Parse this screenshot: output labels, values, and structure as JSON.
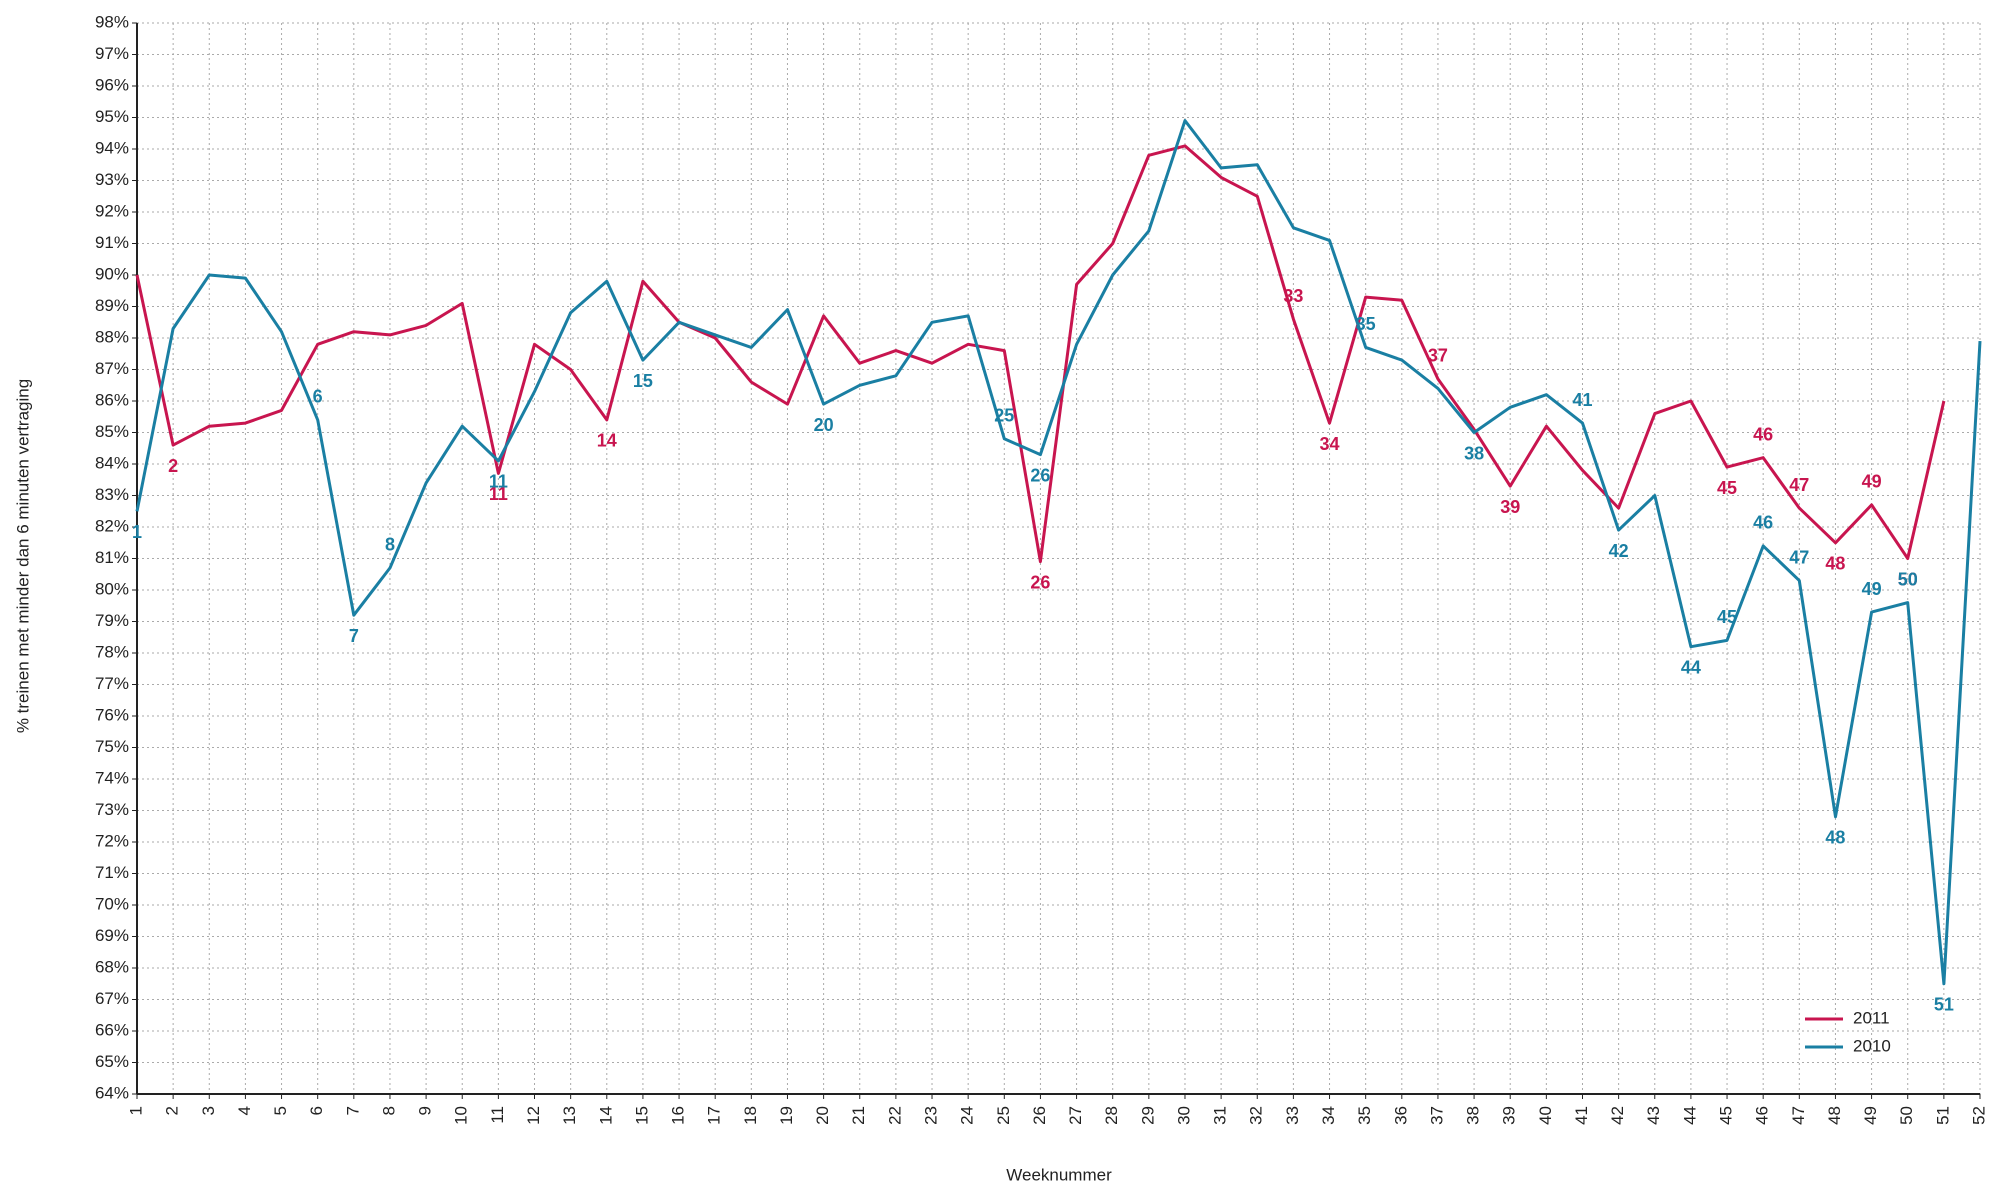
{
  "chart_data": {
    "type": "line",
    "y_label": "% treinen met minder dan 6 minuten vertraging",
    "x_label": "Weeknummer",
    "x": [
      1,
      2,
      3,
      4,
      5,
      6,
      7,
      8,
      9,
      10,
      11,
      12,
      13,
      14,
      15,
      16,
      17,
      18,
      19,
      20,
      21,
      22,
      23,
      24,
      25,
      26,
      27,
      28,
      29,
      30,
      31,
      32,
      33,
      34,
      35,
      36,
      37,
      38,
      39,
      40,
      41,
      42,
      43,
      44,
      45,
      46,
      47,
      48,
      49,
      50,
      51,
      52
    ],
    "xlim": [
      1,
      52
    ],
    "xticks": [
      1,
      2,
      3,
      4,
      5,
      6,
      7,
      8,
      9,
      10,
      11,
      12,
      13,
      14,
      15,
      16,
      17,
      18,
      19,
      20,
      21,
      22,
      23,
      24,
      25,
      26,
      27,
      28,
      29,
      30,
      31,
      32,
      33,
      34,
      35,
      36,
      37,
      38,
      39,
      40,
      41,
      42,
      43,
      44,
      45,
      46,
      47,
      48,
      49,
      50,
      51,
      52
    ],
    "ylim": [
      64,
      98
    ],
    "yticks": [
      {
        "value": 64,
        "label": "64%"
      },
      {
        "value": 65,
        "label": "65%"
      },
      {
        "value": 66,
        "label": "66%"
      },
      {
        "value": 67,
        "label": "67%"
      },
      {
        "value": 68,
        "label": "68%"
      },
      {
        "value": 69,
        "label": "69%"
      },
      {
        "value": 70,
        "label": "70%"
      },
      {
        "value": 71,
        "label": "71%"
      },
      {
        "value": 72,
        "label": "72%"
      },
      {
        "value": 73,
        "label": "73%"
      },
      {
        "value": 74,
        "label": "74%"
      },
      {
        "value": 75,
        "label": "75%"
      },
      {
        "value": 76,
        "label": "76%"
      },
      {
        "value": 77,
        "label": "77%"
      },
      {
        "value": 78,
        "label": "78%"
      },
      {
        "value": 79,
        "label": "79%"
      },
      {
        "value": 80,
        "label": "80%"
      },
      {
        "value": 81,
        "label": "81%"
      },
      {
        "value": 82,
        "label": "82%"
      },
      {
        "value": 83,
        "label": "83%"
      },
      {
        "value": 84,
        "label": "84%"
      },
      {
        "value": 85,
        "label": "85%"
      },
      {
        "value": 86,
        "label": "86%"
      },
      {
        "value": 87,
        "label": "87%"
      },
      {
        "value": 88,
        "label": "88%"
      },
      {
        "value": 89,
        "label": "89%"
      },
      {
        "value": 90,
        "label": "90%"
      },
      {
        "value": 91,
        "label": "91%"
      },
      {
        "value": 92,
        "label": "92%"
      },
      {
        "value": 93,
        "label": "93%"
      },
      {
        "value": 94,
        "label": "94%"
      },
      {
        "value": 95,
        "label": "95%"
      },
      {
        "value": 96,
        "label": "96%"
      },
      {
        "value": 97,
        "label": "97%"
      },
      {
        "value": 98,
        "label": "98%"
      }
    ],
    "grid": true,
    "legend": "lower right",
    "series": [
      {
        "name": "2011",
        "color": "#c8154f",
        "values": [
          90.0,
          84.6,
          85.2,
          85.3,
          85.7,
          87.8,
          88.2,
          88.1,
          88.4,
          89.1,
          83.7,
          87.8,
          87.0,
          85.4,
          89.8,
          88.5,
          88.0,
          86.6,
          85.9,
          88.7,
          87.2,
          87.6,
          87.2,
          87.8,
          87.6,
          80.9,
          89.7,
          91.0,
          93.8,
          94.1,
          93.1,
          92.5,
          88.6,
          85.3,
          89.3,
          89.2,
          86.7,
          85.1,
          83.3,
          85.2,
          83.8,
          82.6,
          85.6,
          86.0,
          83.9,
          84.2,
          82.6,
          81.5,
          82.7,
          81.0,
          86.0,
          null
        ],
        "point_labels": [
          null,
          2,
          null,
          null,
          null,
          null,
          null,
          null,
          null,
          null,
          11,
          null,
          null,
          14,
          null,
          null,
          null,
          null,
          null,
          null,
          null,
          null,
          null,
          null,
          null,
          26,
          null,
          null,
          null,
          null,
          null,
          null,
          33,
          34,
          null,
          null,
          37,
          null,
          39,
          null,
          null,
          null,
          null,
          null,
          45,
          46,
          47,
          48,
          49,
          50,
          null,
          null
        ]
      },
      {
        "name": "2010",
        "color": "#1a7fa3",
        "values": [
          82.5,
          88.3,
          90.0,
          89.9,
          88.2,
          85.4,
          79.2,
          80.7,
          83.4,
          85.2,
          84.1,
          86.3,
          88.8,
          89.8,
          87.3,
          88.5,
          88.1,
          87.7,
          88.9,
          85.9,
          86.5,
          86.8,
          88.5,
          88.7,
          84.8,
          84.3,
          87.8,
          90.0,
          91.4,
          94.9,
          93.4,
          93.5,
          91.5,
          91.1,
          87.7,
          87.3,
          86.4,
          85.0,
          85.8,
          86.2,
          85.3,
          81.9,
          83.0,
          78.2,
          78.4,
          81.4,
          80.3,
          72.8,
          79.3,
          79.6,
          67.5,
          87.9
        ],
        "point_labels": [
          1,
          null,
          null,
          null,
          null,
          6,
          7,
          8,
          null,
          null,
          11,
          null,
          null,
          null,
          15,
          null,
          null,
          null,
          null,
          20,
          null,
          null,
          null,
          null,
          25,
          26,
          null,
          null,
          null,
          null,
          null,
          null,
          null,
          null,
          35,
          null,
          null,
          38,
          null,
          null,
          41,
          42,
          null,
          44,
          45,
          46,
          47,
          48,
          49,
          50,
          51,
          null
        ]
      }
    ]
  }
}
